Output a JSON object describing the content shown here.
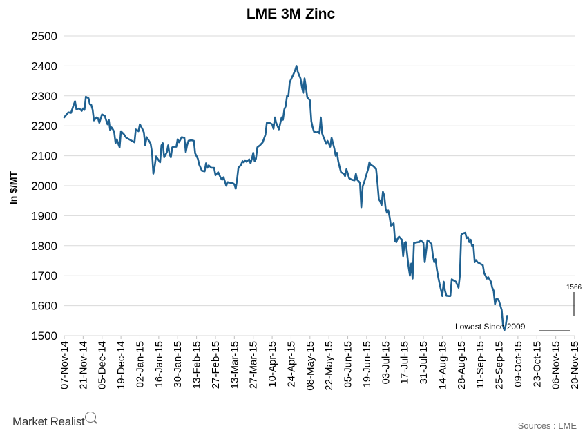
{
  "chart_data": {
    "type": "line",
    "title": "LME 3M Zinc",
    "ylabel": "In $/MT",
    "ylim": [
      1500,
      2500
    ],
    "y_ticks": [
      1500,
      1600,
      1700,
      1800,
      1900,
      2000,
      2100,
      2200,
      2300,
      2400,
      2500
    ],
    "grid": true,
    "x_tick_labels": [
      "07-Nov-14",
      "21-Nov-14",
      "05-Dec-14",
      "19-Dec-14",
      "02-Jan-15",
      "16-Jan-15",
      "30-Jan-15",
      "13-Feb-15",
      "27-Feb-15",
      "13-Mar-15",
      "27-Mar-15",
      "10-Apr-15",
      "24-Apr-15",
      "08-May-15",
      "22-May-15",
      "05-Jun-15",
      "19-Jun-15",
      "03-Jul-15",
      "17-Jul-15",
      "31-Jul-15",
      "14-Aug-15",
      "28-Aug-15",
      "11-Sep-15",
      "25-Sep-15",
      "09-Oct-15",
      "23-Oct-15",
      "06-Nov-15",
      "20-Nov-15"
    ],
    "series": [
      {
        "color": "#1f6191",
        "points": [
          [
            "07-Nov-14",
            2228
          ],
          [
            "10-Nov-14",
            2245
          ],
          [
            "12-Nov-14",
            2243
          ],
          [
            "14-Nov-14",
            2270
          ],
          [
            "15-Nov-14",
            2282
          ],
          [
            "16-Nov-14",
            2255
          ],
          [
            "18-Nov-14",
            2258
          ],
          [
            "20-Nov-14",
            2250
          ],
          [
            "21-Nov-14",
            2258
          ],
          [
            "22-Nov-14",
            2253
          ],
          [
            "23-Nov-14",
            2297
          ],
          [
            "25-Nov-14",
            2292
          ],
          [
            "26-Nov-14",
            2272
          ],
          [
            "27-Nov-14",
            2270
          ],
          [
            "28-Nov-14",
            2254
          ],
          [
            "29-Nov-14",
            2218
          ],
          [
            "01-Dec-14",
            2228
          ],
          [
            "02-Dec-14",
            2225
          ],
          [
            "03-Dec-14",
            2210
          ],
          [
            "05-Dec-14",
            2238
          ],
          [
            "07-Dec-14",
            2233
          ],
          [
            "09-Dec-14",
            2205
          ],
          [
            "10-Dec-14",
            2220
          ],
          [
            "11-Dec-14",
            2185
          ],
          [
            "12-Dec-14",
            2195
          ],
          [
            "13-Dec-14",
            2188
          ],
          [
            "14-Dec-14",
            2180
          ],
          [
            "15-Dec-14",
            2142
          ],
          [
            "16-Dec-14",
            2155
          ],
          [
            "17-Dec-14",
            2140
          ],
          [
            "18-Dec-14",
            2128
          ],
          [
            "19-Dec-14",
            2182
          ],
          [
            "21-Dec-14",
            2173
          ],
          [
            "23-Dec-14",
            2160
          ],
          [
            "27-Dec-14",
            2150
          ],
          [
            "29-Dec-14",
            2145
          ],
          [
            "30-Dec-14",
            2188
          ],
          [
            "01-Jan-15",
            2182
          ],
          [
            "02-Jan-15",
            2205
          ],
          [
            "04-Jan-15",
            2188
          ],
          [
            "05-Jan-15",
            2178
          ],
          [
            "06-Jan-15",
            2135
          ],
          [
            "07-Jan-15",
            2162
          ],
          [
            "09-Jan-15",
            2148
          ],
          [
            "10-Jan-15",
            2140
          ],
          [
            "11-Jan-15",
            2112
          ],
          [
            "12-Jan-15",
            2040
          ],
          [
            "13-Jan-15",
            2065
          ],
          [
            "14-Jan-15",
            2098
          ],
          [
            "17-Jan-15",
            2078
          ],
          [
            "18-Jan-15",
            2135
          ],
          [
            "19-Jan-15",
            2142
          ],
          [
            "20-Jan-15",
            2095
          ],
          [
            "22-Jan-15",
            2112
          ],
          [
            "23-Jan-15",
            2135
          ],
          [
            "24-Jan-15",
            2105
          ],
          [
            "25-Jan-15",
            2095
          ],
          [
            "26-Jan-15",
            2128
          ],
          [
            "27-Jan-15",
            2130
          ],
          [
            "29-Jan-15",
            2130
          ],
          [
            "30-Jan-15",
            2155
          ],
          [
            "31-Jan-15",
            2145
          ],
          [
            "02-Feb-15",
            2162
          ],
          [
            "04-Feb-15",
            2160
          ],
          [
            "05-Feb-15",
            2112
          ],
          [
            "06-Feb-15",
            2135
          ],
          [
            "07-Feb-15",
            2150
          ],
          [
            "09-Feb-15",
            2152
          ],
          [
            "11-Feb-15",
            2150
          ],
          [
            "12-Feb-15",
            2108
          ],
          [
            "14-Feb-15",
            2090
          ],
          [
            "15-Feb-15",
            2070
          ],
          [
            "17-Feb-15",
            2050
          ],
          [
            "19-Feb-15",
            2048
          ],
          [
            "20-Feb-15",
            2075
          ],
          [
            "21-Feb-15",
            2060
          ],
          [
            "22-Feb-15",
            2068
          ],
          [
            "24-Feb-15",
            2060
          ],
          [
            "26-Feb-15",
            2060
          ],
          [
            "27-Feb-15",
            2035
          ],
          [
            "01-Mar-15",
            2045
          ],
          [
            "03-Mar-15",
            2025
          ],
          [
            "04-Mar-15",
            2020
          ],
          [
            "05-Mar-15",
            2028
          ],
          [
            "07-Mar-15",
            2000
          ],
          [
            "08-Mar-15",
            2012
          ],
          [
            "10-Mar-15",
            2010
          ],
          [
            "12-Mar-15",
            2008
          ],
          [
            "13-Mar-15",
            2005
          ],
          [
            "14-Mar-15",
            1990
          ],
          [
            "15-Mar-15",
            2020
          ],
          [
            "16-Mar-15",
            2060
          ],
          [
            "18-Mar-15",
            2070
          ],
          [
            "19-Mar-15",
            2082
          ],
          [
            "20-Mar-15",
            2078
          ],
          [
            "21-Mar-15",
            2085
          ],
          [
            "22-Mar-15",
            2080
          ],
          [
            "24-Mar-15",
            2088
          ],
          [
            "25-Mar-15",
            2075
          ],
          [
            "26-Mar-15",
            2090
          ],
          [
            "27-Mar-15",
            2110
          ],
          [
            "28-Mar-15",
            2082
          ],
          [
            "29-Mar-15",
            2090
          ],
          [
            "30-Mar-15",
            2128
          ],
          [
            "01-Apr-15",
            2135
          ],
          [
            "03-Apr-15",
            2145
          ],
          [
            "05-Apr-15",
            2170
          ],
          [
            "06-Apr-15",
            2210
          ],
          [
            "08-Apr-15",
            2210
          ],
          [
            "10-Apr-15",
            2205
          ],
          [
            "11-Apr-15",
            2190
          ],
          [
            "12-Apr-15",
            2228
          ],
          [
            "13-Apr-15",
            2210
          ],
          [
            "15-Apr-15",
            2188
          ],
          [
            "17-Apr-15",
            2228
          ],
          [
            "18-Apr-15",
            2220
          ],
          [
            "19-Apr-15",
            2255
          ],
          [
            "20-Apr-15",
            2265
          ],
          [
            "21-Apr-15",
            2300
          ],
          [
            "22-Apr-15",
            2298
          ],
          [
            "23-Apr-15",
            2345
          ],
          [
            "24-Apr-15",
            2355
          ],
          [
            "26-Apr-15",
            2375
          ],
          [
            "27-Apr-15",
            2385
          ],
          [
            "28-Apr-15",
            2400
          ],
          [
            "29-Apr-15",
            2380
          ],
          [
            "01-May-15",
            2358
          ],
          [
            "02-May-15",
            2330
          ],
          [
            "03-May-15",
            2310
          ],
          [
            "04-May-15",
            2358
          ],
          [
            "05-May-15",
            2330
          ],
          [
            "06-May-15",
            2295
          ],
          [
            "07-May-15",
            2290
          ],
          [
            "08-May-15",
            2285
          ],
          [
            "09-May-15",
            2215
          ],
          [
            "10-May-15",
            2195
          ],
          [
            "11-May-15",
            2180
          ],
          [
            "13-May-15",
            2178
          ],
          [
            "14-May-15",
            2180
          ],
          [
            "15-May-15",
            2175
          ],
          [
            "16-May-15",
            2228
          ],
          [
            "17-May-15",
            2175
          ],
          [
            "18-May-15",
            2162
          ],
          [
            "20-May-15",
            2140
          ],
          [
            "21-May-15",
            2150
          ],
          [
            "22-May-15",
            2140
          ],
          [
            "23-May-15",
            2130
          ],
          [
            "24-May-15",
            2160
          ],
          [
            "26-May-15",
            2125
          ],
          [
            "27-May-15",
            2100
          ],
          [
            "28-May-15",
            2110
          ],
          [
            "29-May-15",
            2080
          ],
          [
            "30-May-15",
            2062
          ],
          [
            "31-May-15",
            2045
          ],
          [
            "02-Jun-15",
            2040
          ],
          [
            "03-Jun-15",
            2032
          ],
          [
            "04-Jun-15",
            2055
          ],
          [
            "05-Jun-15",
            2040
          ],
          [
            "06-Jun-15",
            2025
          ],
          [
            "08-Jun-15",
            2020
          ],
          [
            "10-Jun-15",
            2018
          ],
          [
            "11-Jun-15",
            2040
          ],
          [
            "12-Jun-15",
            2020
          ],
          [
            "13-Jun-15",
            2015
          ],
          [
            "14-Jun-15",
            2010
          ],
          [
            "15-Jun-15",
            1928
          ],
          [
            "16-Jun-15",
            1998
          ],
          [
            "17-Jun-15",
            2010
          ],
          [
            "18-Jun-15",
            2025
          ],
          [
            "19-Jun-15",
            2040
          ],
          [
            "20-Jun-15",
            2055
          ],
          [
            "21-Jun-15",
            2078
          ],
          [
            "22-Jun-15",
            2070
          ],
          [
            "24-Jun-15",
            2065
          ],
          [
            "26-Jun-15",
            2055
          ],
          [
            "27-Jun-15",
            2008
          ],
          [
            "28-Jun-15",
            1955
          ],
          [
            "29-Jun-15",
            1948
          ],
          [
            "30-Jun-15",
            1935
          ],
          [
            "01-Jul-15",
            1980
          ],
          [
            "02-Jul-15",
            1968
          ],
          [
            "03-Jul-15",
            1925
          ],
          [
            "04-Jul-15",
            1910
          ],
          [
            "05-Jul-15",
            1918
          ],
          [
            "06-Jul-15",
            1895
          ],
          [
            "07-Jul-15",
            1865
          ],
          [
            "08-Jul-15",
            1870
          ],
          [
            "09-Jul-15",
            1875
          ],
          [
            "10-Jul-15",
            1815
          ],
          [
            "11-Jul-15",
            1812
          ],
          [
            "12-Jul-15",
            1825
          ],
          [
            "13-Jul-15",
            1830
          ],
          [
            "15-Jul-15",
            1820
          ],
          [
            "16-Jul-15",
            1765
          ],
          [
            "17-Jul-15",
            1810
          ],
          [
            "18-Jul-15",
            1812
          ],
          [
            "19-Jul-15",
            1770
          ],
          [
            "20-Jul-15",
            1730
          ],
          [
            "21-Jul-15",
            1700
          ],
          [
            "22-Jul-15",
            1740
          ],
          [
            "23-Jul-15",
            1690
          ],
          [
            "24-Jul-15",
            1810
          ],
          [
            "25-Jul-15",
            1810
          ],
          [
            "27-Jul-15",
            1812
          ],
          [
            "28-Jul-15",
            1812
          ],
          [
            "29-Jul-15",
            1818
          ],
          [
            "31-Jul-15",
            1810
          ],
          [
            "01-Aug-15",
            1745
          ],
          [
            "02-Aug-15",
            1780
          ],
          [
            "03-Aug-15",
            1818
          ],
          [
            "04-Aug-15",
            1815
          ],
          [
            "06-Aug-15",
            1805
          ],
          [
            "07-Aug-15",
            1768
          ],
          [
            "08-Aug-15",
            1745
          ],
          [
            "09-Aug-15",
            1755
          ],
          [
            "10-Aug-15",
            1720
          ],
          [
            "11-Aug-15",
            1695
          ],
          [
            "12-Aug-15",
            1672
          ],
          [
            "13-Aug-15",
            1652
          ],
          [
            "14-Aug-15",
            1632
          ],
          [
            "15-Aug-15",
            1680
          ],
          [
            "16-Aug-15",
            1650
          ],
          [
            "17-Aug-15",
            1633
          ],
          [
            "19-Aug-15",
            1632
          ],
          [
            "20-Aug-15",
            1632
          ],
          [
            "21-Aug-15",
            1688
          ],
          [
            "22-Aug-15",
            1685
          ],
          [
            "24-Aug-15",
            1680
          ],
          [
            "25-Aug-15",
            1670
          ],
          [
            "26-Aug-15",
            1660
          ],
          [
            "27-Aug-15",
            1700
          ],
          [
            "28-Aug-15",
            1835
          ],
          [
            "29-Aug-15",
            1840
          ],
          [
            "31-Aug-15",
            1843
          ],
          [
            "01-Sep-15",
            1825
          ],
          [
            "02-Sep-15",
            1828
          ],
          [
            "03-Sep-15",
            1812
          ],
          [
            "04-Sep-15",
            1820
          ],
          [
            "05-Sep-15",
            1800
          ],
          [
            "06-Sep-15",
            1802
          ],
          [
            "07-Sep-15",
            1745
          ],
          [
            "08-Sep-15",
            1752
          ],
          [
            "09-Sep-15",
            1745
          ],
          [
            "11-Sep-15",
            1740
          ],
          [
            "13-Sep-15",
            1735
          ],
          [
            "14-Sep-15",
            1708
          ],
          [
            "15-Sep-15",
            1700
          ],
          [
            "16-Sep-15",
            1690
          ],
          [
            "17-Sep-15",
            1695
          ],
          [
            "19-Sep-15",
            1680
          ],
          [
            "20-Sep-15",
            1660
          ],
          [
            "21-Sep-15",
            1650
          ],
          [
            "22-Sep-15",
            1605
          ],
          [
            "23-Sep-15",
            1622
          ],
          [
            "24-Sep-15",
            1622
          ],
          [
            "25-Sep-15",
            1615
          ],
          [
            "26-Sep-15",
            1600
          ],
          [
            "27-Sep-15",
            1585
          ],
          [
            "28-Sep-15",
            1532
          ],
          [
            "29-Sep-15",
            1518
          ],
          [
            "30-Sep-15",
            1535
          ],
          [
            "01-Oct-15",
            1566
          ]
        ]
      }
    ],
    "annotations": {
      "last_value_label": "1566",
      "low_label": "Lowest Since 2009"
    }
  },
  "footer": {
    "brand": "Market Realist",
    "source": "Sources : LME"
  }
}
